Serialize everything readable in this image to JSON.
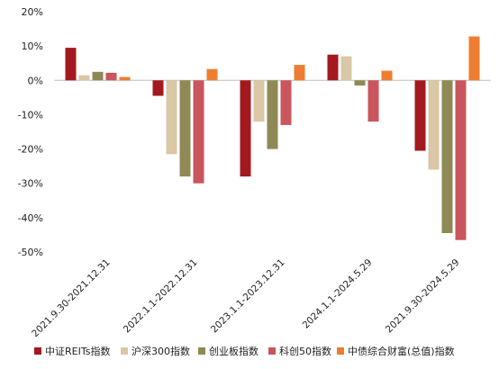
{
  "chart_data": {
    "type": "bar",
    "title": "",
    "xlabel": "",
    "ylabel": "",
    "ylim": [
      -0.5,
      0.2
    ],
    "y_ticks": [
      "20%",
      "10%",
      "0%",
      "-10%",
      "-20%",
      "-30%",
      "-40%",
      "-50%"
    ],
    "grid": false,
    "legend_position": "bottom",
    "categories": [
      "2021.9.30-2021.12.31",
      "2022.1.1-2022.12.31",
      "2023.1.1-2023.12.31",
      "2024.1.1-2024.5.29",
      "2021.9.30-2024.5.29"
    ],
    "series": [
      {
        "name": "中证REITs指数",
        "color": "#a3191f",
        "values": [
          0.095,
          -0.045,
          -0.28,
          0.075,
          -0.205
        ]
      },
      {
        "name": "沪深300指数",
        "color": "#d9c7a5",
        "values": [
          0.015,
          -0.215,
          -0.12,
          0.07,
          -0.26
        ]
      },
      {
        "name": "创业板指数",
        "color": "#8f8a55",
        "values": [
          0.025,
          -0.28,
          -0.2,
          -0.015,
          -0.445
        ]
      },
      {
        "name": "科创50指数",
        "color": "#c8565c",
        "values": [
          0.022,
          -0.3,
          -0.13,
          -0.12,
          -0.465
        ]
      },
      {
        "name": "中债综合财富(总值)指数",
        "color": "#ed7d31",
        "values": [
          0.01,
          0.033,
          0.045,
          0.028,
          0.128
        ]
      }
    ]
  }
}
